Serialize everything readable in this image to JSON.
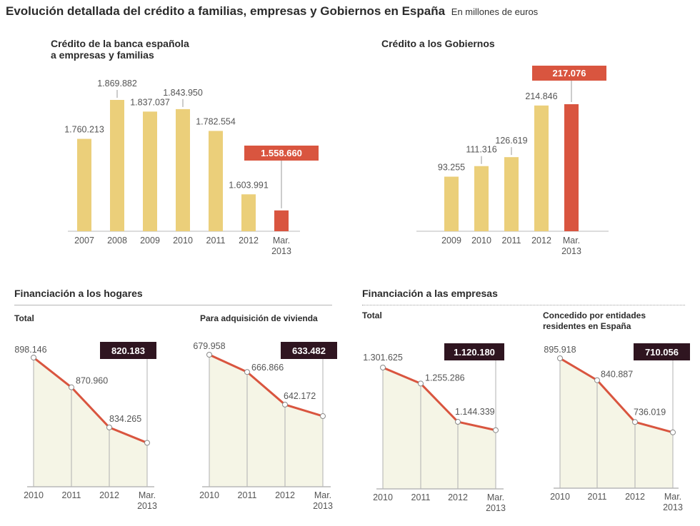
{
  "header": {
    "title": "Evolución detallada del crédito a familias, empresas y Gobiernos en España",
    "subtitle": "En millones de euros"
  },
  "sections": {
    "hogares": "Financiación a los hogares",
    "empresas": "Financiación a las empresas"
  },
  "colors": {
    "bar": "#ebcf7a",
    "highlight_bar": "#d9553f",
    "line": "#d9553f",
    "area": "#f5f5e6",
    "dark_label": "#2f1520",
    "axis": "#b8b8b8",
    "text": "#555555"
  },
  "chart_data": [
    {
      "id": "credito-banca",
      "type": "bar",
      "title_lines": [
        "Crédito de la banca española",
        "a empresas y familias"
      ],
      "categories": [
        "2007",
        "2008",
        "2009",
        "2010",
        "2011",
        "2012",
        "Mar. 2013"
      ],
      "values": [
        1760213,
        1869882,
        1837037,
        1843950,
        1782554,
        1603991,
        1558660
      ],
      "labels": [
        "1.760.213",
        "1.869.882",
        "1.837.037",
        "1.843.950",
        "1.782.554",
        "1.603.991",
        "1.558.660"
      ],
      "highlight_index": 6,
      "ylim": [
        1500000,
        1900000
      ],
      "units": "millones de euros"
    },
    {
      "id": "credito-gobiernos",
      "type": "bar",
      "title_lines": [
        "Crédito a los Gobiernos"
      ],
      "categories": [
        "2009",
        "2010",
        "2011",
        "2012",
        "Mar. 2013"
      ],
      "values": [
        93255,
        111316,
        126619,
        214846,
        217076
      ],
      "labels": [
        "93.255",
        "111.316",
        "126.619",
        "214.846",
        "217.076"
      ],
      "highlight_index": 4,
      "ylim": [
        0,
        240000
      ],
      "units": "millones de euros"
    },
    {
      "id": "hogares-total",
      "type": "area",
      "title_lines": [
        "Total"
      ],
      "categories": [
        "2010",
        "2011",
        "2012",
        "Mar. 2013"
      ],
      "values": [
        898146,
        870960,
        834265,
        820183
      ],
      "labels": [
        "898.146",
        "870.960",
        "834.265",
        "820.183"
      ],
      "highlight_index": 3,
      "ylim": [
        780000,
        905000
      ]
    },
    {
      "id": "hogares-vivienda",
      "type": "area",
      "title_lines": [
        "Para adquisición de vivienda"
      ],
      "categories": [
        "2010",
        "2011",
        "2012",
        "Mar. 2013"
      ],
      "values": [
        679958,
        666866,
        642172,
        633482
      ],
      "labels": [
        "679.958",
        "666.866",
        "642.172",
        "633.482"
      ],
      "highlight_index": 3,
      "ylim": [
        580000,
        685000
      ]
    },
    {
      "id": "empresas-total",
      "type": "area",
      "title_lines": [
        "Total"
      ],
      "categories": [
        "2010",
        "2011",
        "2012",
        "Mar. 2013"
      ],
      "values": [
        1301625,
        1255286,
        1144339,
        1120180
      ],
      "labels": [
        "1.301.625",
        "1.255.286",
        "1.144.339",
        "1.120.180"
      ],
      "highlight_index": 3,
      "ylim": [
        950000,
        1330000
      ]
    },
    {
      "id": "empresas-residentes",
      "type": "area",
      "title_lines": [
        "Concedido por entidades",
        "residentes en España"
      ],
      "categories": [
        "2010",
        "2011",
        "2012",
        "Mar. 2013"
      ],
      "values": [
        895918,
        840887,
        736019,
        710056
      ],
      "labels": [
        "895.918",
        "840.887",
        "736.019",
        "710.056"
      ],
      "highlight_index": 3,
      "ylim": [
        570000,
        905000
      ]
    }
  ]
}
